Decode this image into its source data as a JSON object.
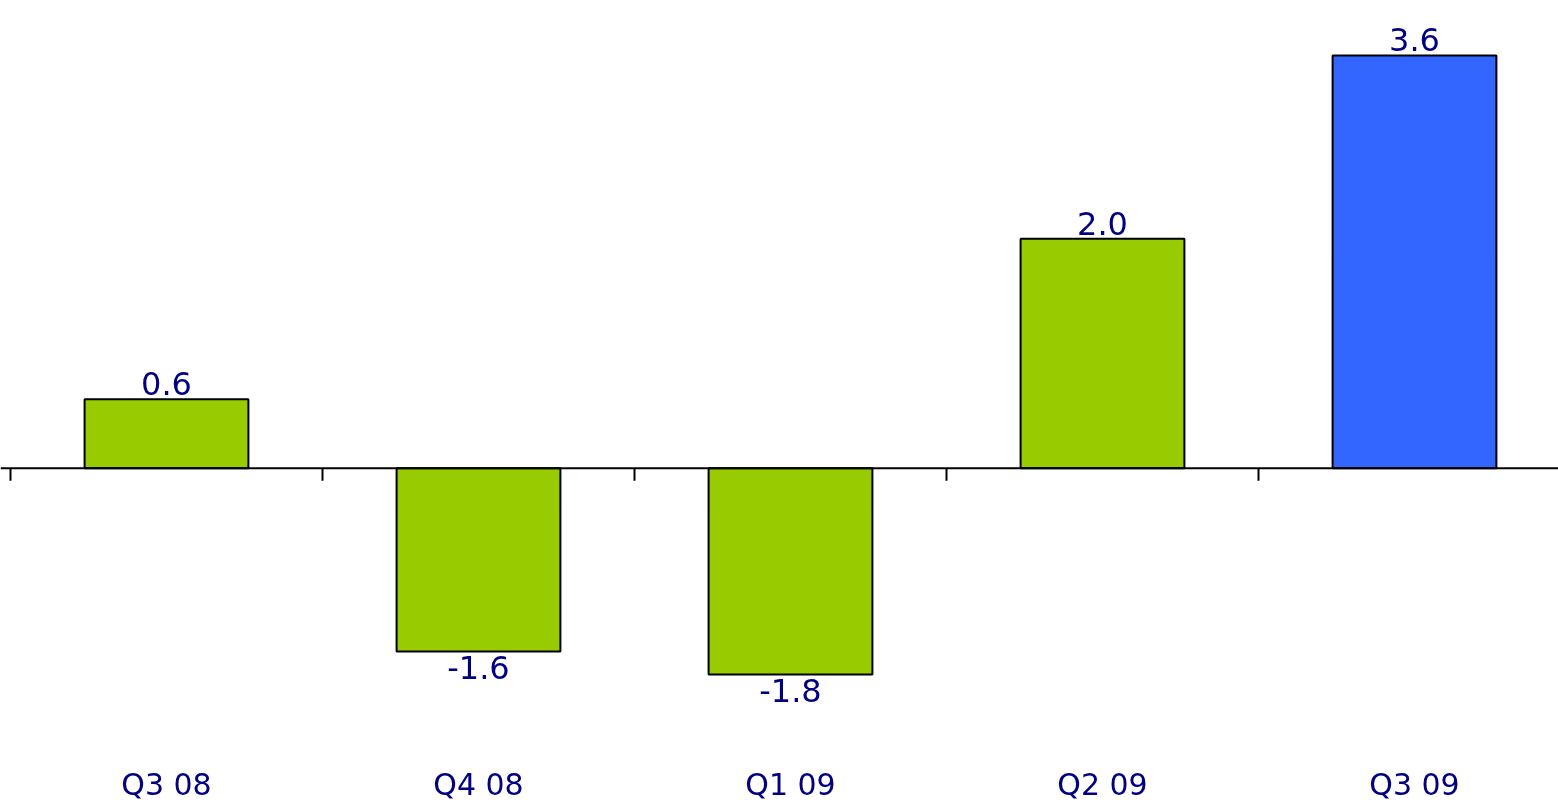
{
  "chart_data": {
    "type": "bar",
    "categories": [
      "Q3 08",
      "Q4 08",
      "Q1 09",
      "Q2 09",
      "Q3 09"
    ],
    "values": [
      0.6,
      -1.6,
      -1.8,
      2.0,
      3.6
    ],
    "value_labels": [
      "0.6",
      "-1.6",
      "-1.8",
      "2.0",
      "3.6"
    ],
    "colors": [
      "#99cc00",
      "#99cc00",
      "#99cc00",
      "#99cc00",
      "#3366ff"
    ]
  }
}
